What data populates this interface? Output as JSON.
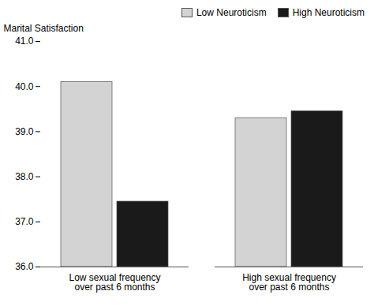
{
  "chart_data": {
    "type": "bar",
    "categories": [
      "Low sexual frequency\nover past 6 months",
      "High sexual frequency\nover past 6 months"
    ],
    "series": [
      {
        "name": "Low Neuroticism",
        "color": "#d3d3d3",
        "values": [
          40.1,
          39.3
        ]
      },
      {
        "name": "High Neuroticism",
        "color": "#1a1a1a",
        "values": [
          37.45,
          39.45
        ]
      }
    ],
    "ylabel": "Marital Satisfaction",
    "ylim": [
      36,
      41
    ],
    "yticks": [
      36,
      37,
      38,
      39,
      40,
      41
    ],
    "legend": "upper right"
  }
}
